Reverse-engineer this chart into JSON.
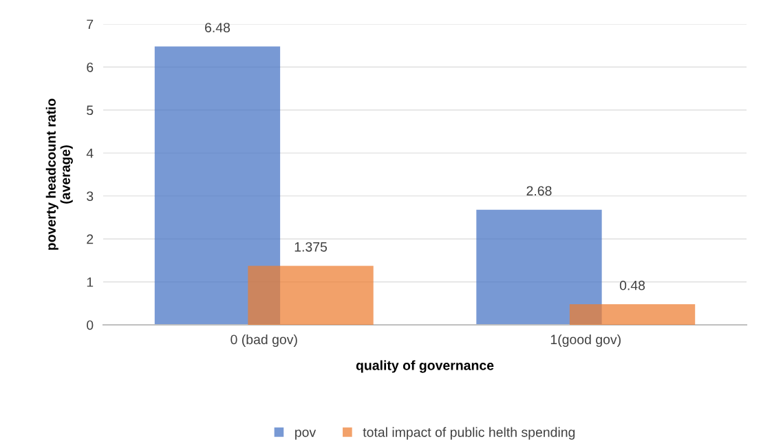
{
  "chart_data": {
    "type": "bar",
    "xlabel": "quality of governance",
    "ylabel": "poverty headcount ratio\n(average)",
    "categories": [
      "0 (bad gov)",
      "1(good gov)"
    ],
    "series": [
      {
        "name": "pov",
        "color": "#4472c4",
        "values": [
          6.48,
          2.68
        ]
      },
      {
        "name": "total impact of public helth spending",
        "color": "#ed7d31",
        "values": [
          1.375,
          0.48
        ]
      }
    ],
    "ylim": [
      0,
      7
    ],
    "yticks": [
      0,
      1,
      2,
      3,
      4,
      5,
      6,
      7
    ],
    "grid": "y",
    "legend": "bottom",
    "data_labels": true
  }
}
